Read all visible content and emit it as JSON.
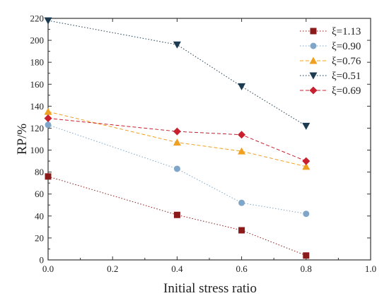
{
  "chart_data": {
    "type": "line",
    "title": "",
    "xlabel": "Initial stress ratio",
    "ylabel": "RP/%",
    "xlim": [
      0.0,
      1.0
    ],
    "ylim": [
      0,
      220
    ],
    "xticks": [
      0.0,
      0.2,
      0.4,
      0.6,
      0.8,
      1.0
    ],
    "xtick_labels": [
      "0.0",
      "0.2",
      "0.4",
      "0.6",
      "0.8",
      "1.0"
    ],
    "yticks": [
      0,
      20,
      40,
      60,
      80,
      100,
      120,
      140,
      160,
      180,
      200,
      220
    ],
    "ytick_labels": [
      "0",
      "20",
      "40",
      "60",
      "80",
      "100",
      "120",
      "140",
      "160",
      "180",
      "200",
      "220"
    ],
    "grid": false,
    "legend_position": "top-right",
    "x": [
      0.0,
      0.4,
      0.6,
      0.8
    ],
    "series": [
      {
        "name": "ξ=1.13",
        "marker": "square",
        "color": "#8b1a1a",
        "line_style": "dotted",
        "values": [
          76,
          41,
          27,
          4
        ]
      },
      {
        "name": "ξ=0.90",
        "marker": "circle",
        "color": "#7fa6c8",
        "line_style": "dotted",
        "values": [
          123,
          83,
          52,
          42
        ]
      },
      {
        "name": "ξ=0.76",
        "marker": "triangle",
        "color": "#f0a020",
        "line_style": "dashed",
        "values": [
          135,
          107,
          99,
          85
        ]
      },
      {
        "name": "ξ=0.51",
        "marker": "triangle-down",
        "color": "#1d3b50",
        "line_style": "dotted",
        "values": [
          218,
          196,
          158,
          122
        ]
      },
      {
        "name": "ξ=0.69",
        "marker": "diamond",
        "color": "#c8202f",
        "line_style": "dashed",
        "values": [
          129,
          117,
          114,
          90
        ]
      }
    ]
  }
}
